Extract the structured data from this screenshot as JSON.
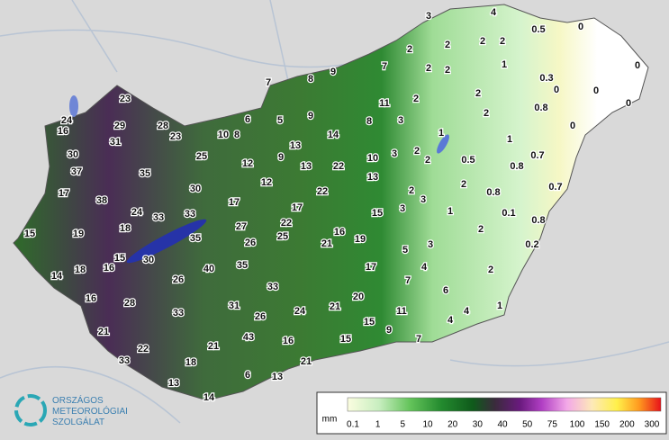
{
  "stations": {
    "values": [
      3,
      4,
      0.5,
      0,
      2,
      2,
      2,
      2,
      1,
      0,
      7,
      2,
      2,
      0.3,
      0,
      0,
      9,
      8,
      7,
      2,
      2,
      0,
      11,
      0.8,
      2,
      23,
      24,
      16,
      29,
      28,
      6,
      5,
      9,
      8,
      3,
      0,
      23,
      10,
      8,
      1,
      14,
      31,
      13,
      1,
      2,
      3,
      0.7,
      30,
      25,
      9,
      12,
      13,
      22,
      10,
      2,
      0.5,
      0.8,
      37,
      35,
      13,
      12,
      2,
      0.7,
      0.8,
      17,
      30,
      22,
      2,
      3,
      38,
      17,
      17,
      3,
      1,
      0.1,
      24,
      33,
      33,
      15,
      0.8,
      15,
      19,
      18,
      27,
      22,
      16,
      19,
      2,
      35,
      26,
      25,
      21,
      3,
      5,
      0.2,
      15,
      30,
      16,
      18,
      14,
      40,
      35,
      17,
      4,
      2,
      26,
      7,
      33,
      6,
      16,
      28,
      20,
      31,
      21,
      24,
      1,
      11,
      4,
      33,
      26,
      15,
      4,
      21,
      9,
      43,
      16,
      15,
      7,
      22,
      21,
      33,
      18,
      21,
      6,
      13,
      13,
      14
    ]
  },
  "legend": {
    "unit": "mm",
    "ticks": [
      0.1,
      1,
      5,
      10,
      20,
      30,
      40,
      50,
      75,
      100,
      150,
      200,
      300
    ]
  },
  "logo": {
    "lines": [
      "ORSZÁGOS",
      "METEOROLÓGIAI",
      "SZOLGÁLAT"
    ]
  }
}
